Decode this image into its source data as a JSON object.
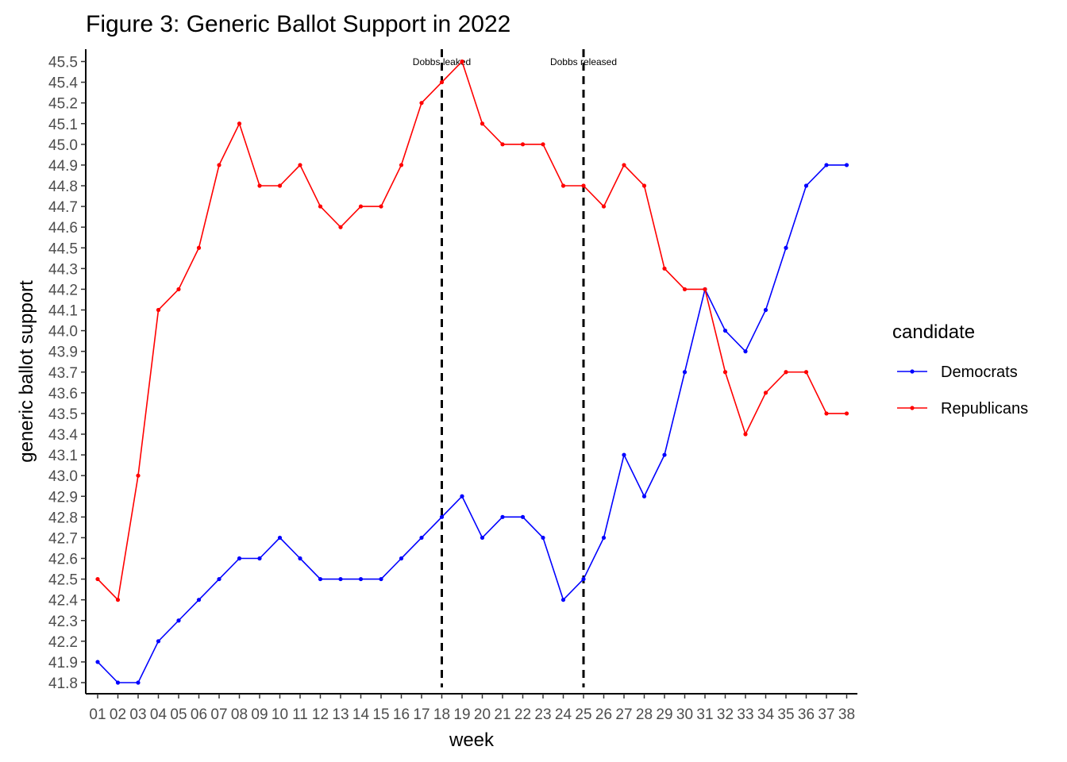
{
  "chart_data": {
    "type": "line",
    "title": "Figure 3: Generic Ballot Support in 2022",
    "xlabel": "week",
    "ylabel": "generic ballot support",
    "categories": [
      "01",
      "02",
      "03",
      "04",
      "05",
      "06",
      "07",
      "08",
      "09",
      "10",
      "11",
      "12",
      "13",
      "14",
      "15",
      "16",
      "17",
      "18",
      "19",
      "20",
      "21",
      "22",
      "23",
      "24",
      "25",
      "26",
      "27",
      "28",
      "29",
      "30",
      "31",
      "32",
      "33",
      "34",
      "35",
      "36",
      "37",
      "38"
    ],
    "y_ticks": [
      "41.8",
      "41.9",
      "42.2",
      "42.3",
      "42.4",
      "42.5",
      "42.6",
      "42.7",
      "42.8",
      "42.9",
      "43.0",
      "43.1",
      "43.4",
      "43.5",
      "43.6",
      "43.7",
      "43.9",
      "44.0",
      "44.1",
      "44.2",
      "44.3",
      "44.5",
      "44.6",
      "44.7",
      "44.8",
      "44.9",
      "45.0",
      "45.1",
      "45.2",
      "45.4",
      "45.5"
    ],
    "y_scale": "discrete (each distinct value evenly spaced)",
    "grid": false,
    "legend": {
      "title": "candidate",
      "position": "right"
    },
    "series": [
      {
        "name": "Democrats",
        "color": "#0000ff",
        "values": [
          "41.9",
          "41.8",
          "41.8",
          "42.2",
          "42.3",
          "42.4",
          "42.5",
          "42.6",
          "42.6",
          "42.7",
          "42.6",
          "42.5",
          "42.5",
          "42.5",
          "42.5",
          "42.6",
          "42.7",
          "42.8",
          "42.9",
          "42.7",
          "42.8",
          "42.8",
          "42.7",
          "42.4",
          "42.5",
          "42.7",
          "43.1",
          "42.9",
          "43.1",
          "43.7",
          "44.2",
          "44.0",
          "43.9",
          "44.1",
          "44.5",
          "44.8",
          "44.9",
          "44.9"
        ]
      },
      {
        "name": "Republicans",
        "color": "#ff0000",
        "values": [
          "42.5",
          "42.4",
          "43.0",
          "44.1",
          "44.2",
          "44.5",
          "44.9",
          "45.1",
          "44.8",
          "44.8",
          "44.9",
          "44.7",
          "44.6",
          "44.7",
          "44.7",
          "44.9",
          "45.2",
          "45.4",
          "45.5",
          "45.1",
          "45.0",
          "45.0",
          "45.0",
          "44.8",
          "44.8",
          "44.7",
          "44.9",
          "44.8",
          "44.3",
          "44.2",
          "44.2",
          "43.7",
          "43.4",
          "43.6",
          "43.7",
          "43.7",
          "43.5",
          "43.5"
        ]
      }
    ],
    "vlines": [
      {
        "label": "Dobbs leaked",
        "x": "18"
      },
      {
        "label": "Dobbs released",
        "x": "25"
      }
    ]
  }
}
